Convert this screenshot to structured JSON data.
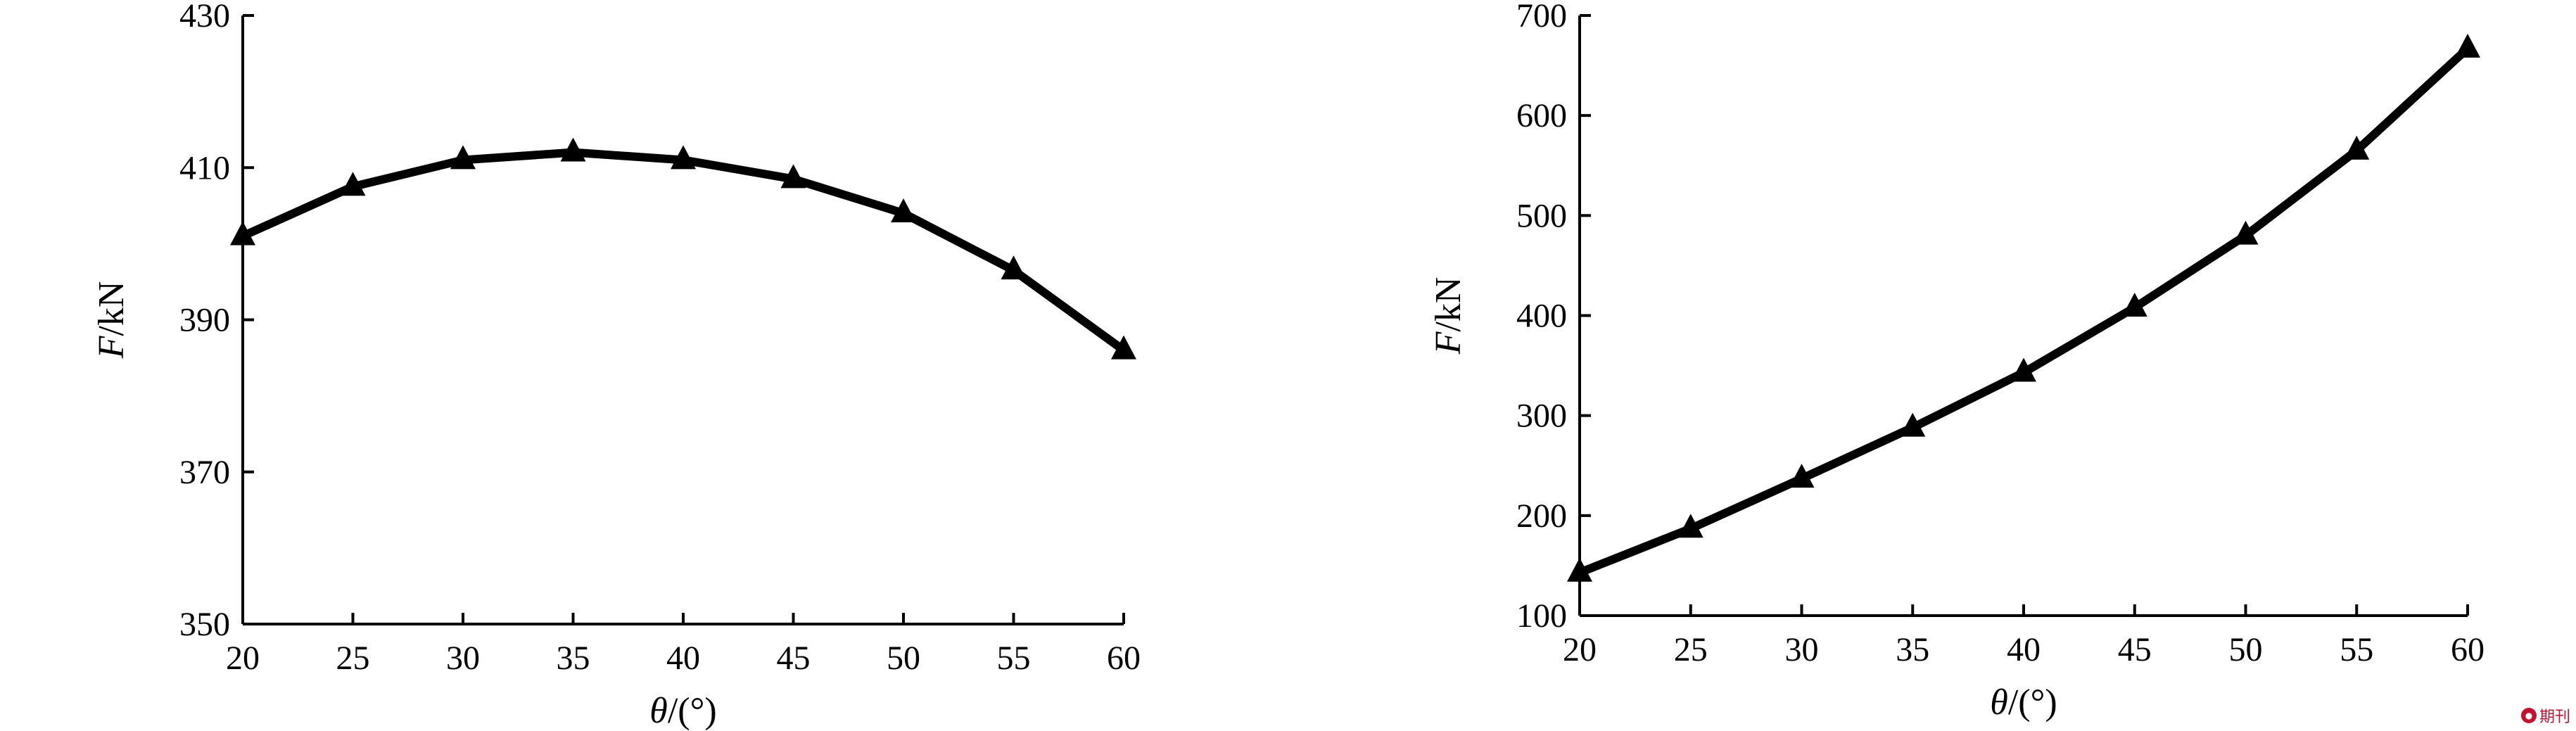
{
  "chart_data": [
    {
      "type": "line",
      "x": [
        20,
        25,
        30,
        35,
        40,
        45,
        50,
        55,
        60
      ],
      "series": [
        {
          "values": [
            401,
            407.5,
            411,
            412,
            411,
            408.5,
            404,
            396.5,
            386
          ],
          "marker": "triangle",
          "color": "#000000"
        }
      ],
      "xlabel_italic": "θ",
      "xlabel_rest": "/(°)",
      "ylabel_italic": "F",
      "ylabel_rest": "/kN",
      "xlim": [
        20,
        60
      ],
      "ylim": [
        350,
        430
      ],
      "xticks": [
        "20",
        "25",
        "30",
        "35",
        "40",
        "45",
        "50",
        "55",
        "60"
      ],
      "yticks": [
        "350",
        "370",
        "390",
        "410",
        "430"
      ],
      "grid": false
    },
    {
      "type": "line",
      "x": [
        20,
        25,
        30,
        35,
        40,
        45,
        50,
        55,
        60
      ],
      "series": [
        {
          "values": [
            143,
            187,
            237,
            288,
            343,
            408,
            480,
            565,
            667
          ],
          "marker": "triangle",
          "color": "#000000"
        }
      ],
      "xlabel_italic": "θ",
      "xlabel_rest": "/(°)",
      "ylabel_italic": "F",
      "ylabel_rest": "/kN",
      "xlim": [
        20,
        60
      ],
      "ylim": [
        100,
        700
      ],
      "xticks": [
        "20",
        "25",
        "30",
        "35",
        "40",
        "45",
        "50",
        "55",
        "60"
      ],
      "yticks": [
        "100",
        "200",
        "300",
        "400",
        "500",
        "600",
        "700"
      ],
      "grid": false
    }
  ],
  "watermark": {
    "text": "期刊",
    "logo": "logo-mark"
  }
}
